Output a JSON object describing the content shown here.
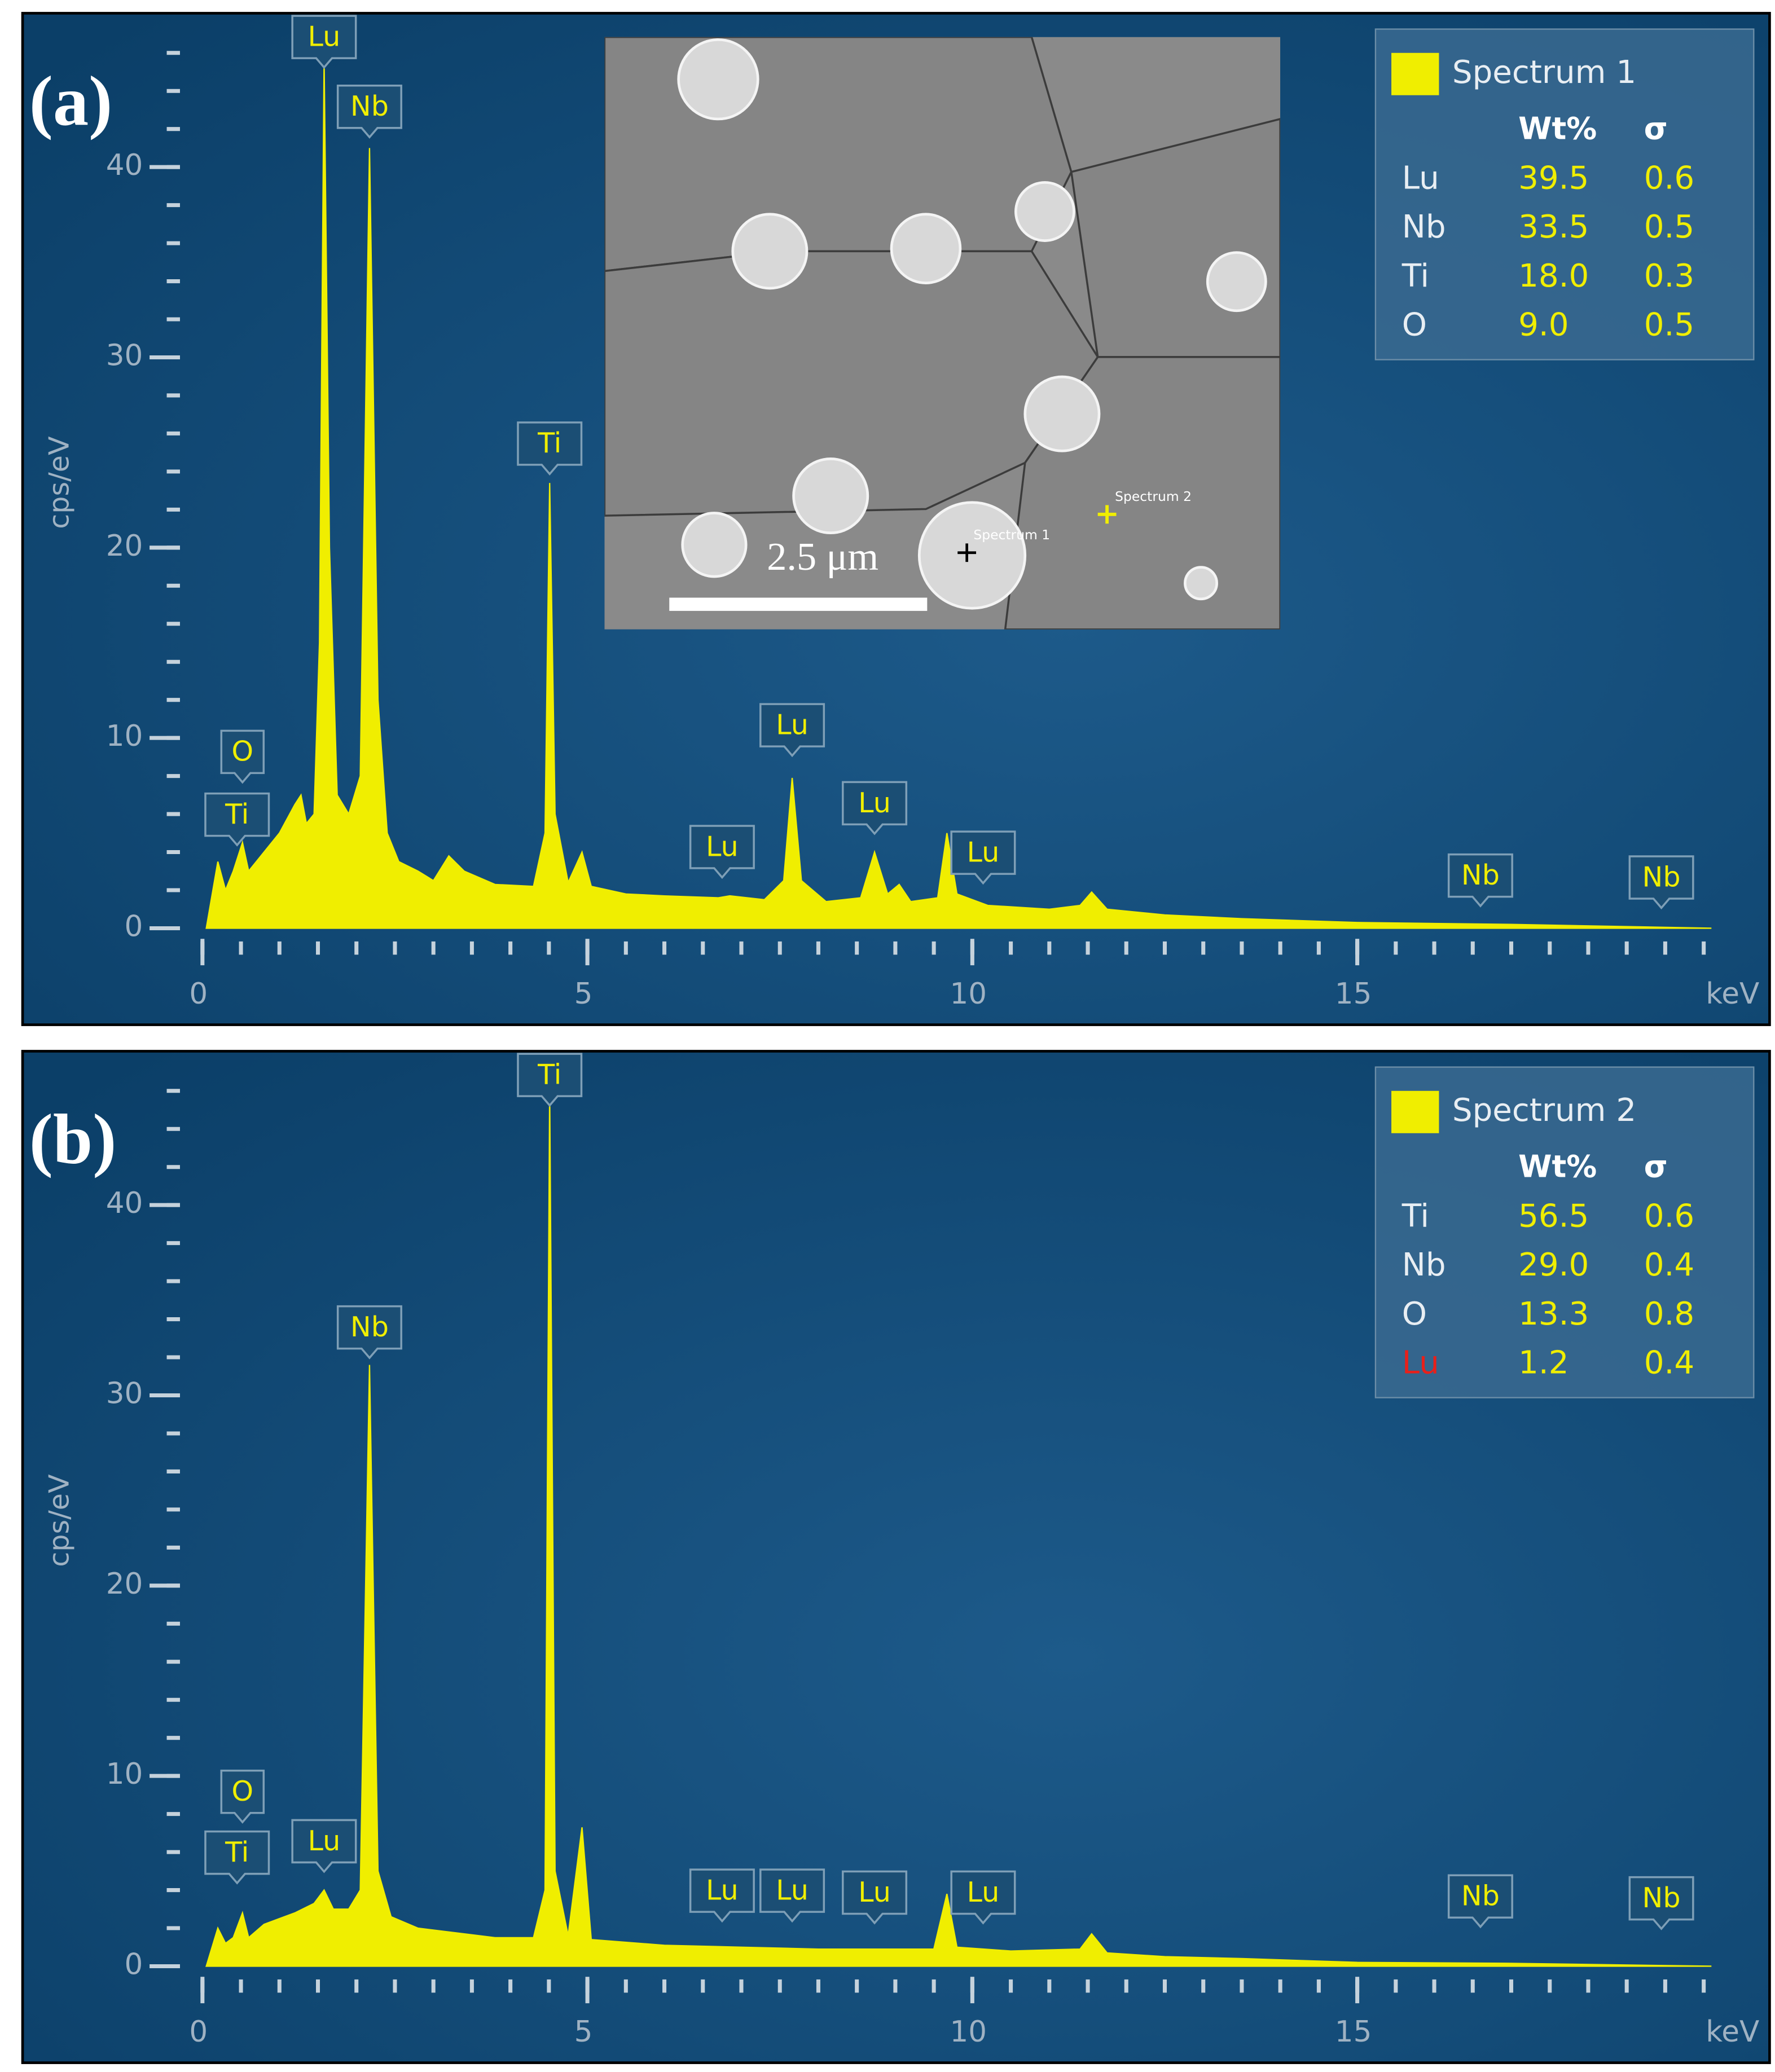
{
  "chart_data": [
    {
      "type": "area",
      "panel_label": "(a)",
      "y_label": "cps/eV",
      "x_label": "keV",
      "xlim": [
        0,
        19.6
      ],
      "ylim": [
        0,
        46
      ],
      "xticks": [
        0,
        5,
        10,
        15
      ],
      "yticks": [
        0,
        10,
        20,
        30,
        40
      ],
      "xminor": 0.5,
      "yminor": 2,
      "x": [
        0.05,
        0.2,
        0.3,
        0.4,
        0.52,
        0.6,
        0.8,
        1.0,
        1.2,
        1.28,
        1.35,
        1.45,
        1.52,
        1.58,
        1.65,
        1.75,
        1.9,
        2.05,
        2.17,
        2.28,
        2.4,
        2.55,
        2.8,
        3.0,
        3.2,
        3.4,
        3.8,
        4.3,
        4.45,
        4.51,
        4.58,
        4.75,
        4.93,
        5.05,
        5.5,
        6.0,
        6.7,
        6.85,
        7.3,
        7.55,
        7.66,
        7.78,
        8.1,
        8.55,
        8.73,
        8.9,
        9.05,
        9.2,
        9.55,
        9.67,
        9.8,
        10.2,
        11.0,
        11.4,
        11.55,
        11.75,
        12.5,
        13.5,
        15,
        17,
        19.6
      ],
      "series": [
        {
          "name": "Spectrum 1",
          "color": "#f0ee00",
          "values": [
            0,
            3.5,
            2,
            3,
            4.5,
            3,
            4,
            5,
            6.5,
            7,
            5.5,
            6,
            15,
            45.6,
            20,
            7,
            6,
            8,
            41,
            12,
            5,
            3.5,
            3,
            2.5,
            3.8,
            3,
            2.3,
            2.2,
            5,
            23.4,
            6,
            2.4,
            4,
            2.2,
            1.8,
            1.7,
            1.6,
            1.7,
            1.5,
            2.5,
            7.9,
            2.5,
            1.4,
            1.6,
            4,
            1.8,
            2.3,
            1.4,
            1.6,
            5,
            1.8,
            1.2,
            1,
            1.2,
            1.9,
            1,
            0.7,
            0.5,
            0.3,
            0.2,
            0
          ]
        }
      ],
      "peak_labels": [
        {
          "text": "Ti",
          "x": 0.45,
          "y": 4.3
        },
        {
          "text": "O",
          "x": 0.52,
          "y": 7.6
        },
        {
          "text": "Lu",
          "x": 1.58,
          "y": 45.6
        },
        {
          "text": "Nb",
          "x": 2.17,
          "y": 41.5
        },
        {
          "text": "Ti",
          "x": 4.51,
          "y": 23.8
        },
        {
          "text": "Lu",
          "x": 6.75,
          "y": 2.6
        },
        {
          "text": "Lu",
          "x": 7.66,
          "y": 9
        },
        {
          "text": "Lu",
          "x": 8.73,
          "y": 4.9
        },
        {
          "text": "Lu",
          "x": 10.14,
          "y": 2.3
        },
        {
          "text": "Nb",
          "x": 16.6,
          "y": 1.1
        },
        {
          "text": "Nb",
          "x": 18.95,
          "y": 1
        }
      ],
      "legend_table": {
        "columns": [
          "Wt%",
          "σ"
        ],
        "rows": [
          {
            "element": "Lu",
            "wt": "39.5",
            "sigma": "0.6"
          },
          {
            "element": "Nb",
            "wt": "33.5",
            "sigma": "0.5"
          },
          {
            "element": "Ti",
            "wt": "18.0",
            "sigma": "0.3"
          },
          {
            "element": "O",
            "wt": "9.0",
            "sigma": "0.5"
          }
        ]
      },
      "inset": {
        "scale_bar": "2.5 μm",
        "markers": [
          "Spectrum 1",
          "Spectrum 2"
        ]
      }
    },
    {
      "type": "area",
      "panel_label": "(b)",
      "y_label": "cps/eV",
      "x_label": "keV",
      "xlim": [
        0,
        19.6
      ],
      "ylim": [
        0,
        46
      ],
      "xticks": [
        0,
        5,
        10,
        15
      ],
      "yticks": [
        0,
        10,
        20,
        30,
        40
      ],
      "xminor": 0.5,
      "yminor": 2,
      "x": [
        0.05,
        0.2,
        0.3,
        0.4,
        0.52,
        0.6,
        0.8,
        1.0,
        1.2,
        1.45,
        1.58,
        1.7,
        1.9,
        2.05,
        2.17,
        2.28,
        2.45,
        2.8,
        3.2,
        3.8,
        4.3,
        4.45,
        4.51,
        4.58,
        4.75,
        4.93,
        5.05,
        6,
        7,
        8,
        9.5,
        9.67,
        9.8,
        10.5,
        11.4,
        11.55,
        11.75,
        12.5,
        13.5,
        15,
        17,
        19.6
      ],
      "series": [
        {
          "name": "Spectrum 2",
          "color": "#f0ee00",
          "values": [
            0,
            2,
            1.2,
            1.5,
            2.8,
            1.5,
            2.2,
            2.5,
            2.8,
            3.3,
            4,
            3,
            3,
            4,
            31.6,
            5,
            2.6,
            2,
            1.8,
            1.5,
            1.5,
            4,
            46,
            5,
            1.6,
            7.3,
            1.4,
            1.1,
            1,
            0.9,
            0.9,
            3.8,
            1,
            0.8,
            0.9,
            1.7,
            0.7,
            0.5,
            0.4,
            0.2,
            0.15,
            0
          ]
        }
      ],
      "peak_labels": [
        {
          "text": "Ti",
          "x": 0.45,
          "y": 4.3
        },
        {
          "text": "O",
          "x": 0.52,
          "y": 7.5
        },
        {
          "text": "Lu",
          "x": 1.58,
          "y": 4.9
        },
        {
          "text": "Nb",
          "x": 2.17,
          "y": 31.9
        },
        {
          "text": "Ti",
          "x": 4.51,
          "y": 45.9
        },
        {
          "text": "Lu",
          "x": 6.75,
          "y": 2.3
        },
        {
          "text": "Lu",
          "x": 7.66,
          "y": 2.3
        },
        {
          "text": "Lu",
          "x": 8.73,
          "y": 2.2
        },
        {
          "text": "Lu",
          "x": 10.14,
          "y": 2.2
        },
        {
          "text": "Nb",
          "x": 16.6,
          "y": 2
        },
        {
          "text": "Nb",
          "x": 18.95,
          "y": 1.9
        }
      ],
      "legend_table": {
        "columns": [
          "Wt%",
          "σ"
        ],
        "rows": [
          {
            "element": "Ti",
            "wt": "56.5",
            "sigma": "0.6"
          },
          {
            "element": "Nb",
            "wt": "29.0",
            "sigma": "0.4"
          },
          {
            "element": "O",
            "wt": "13.3",
            "sigma": "0.8"
          },
          {
            "element": "Lu",
            "wt": "1.2",
            "sigma": "0.4",
            "color": "#e8201a"
          }
        ]
      }
    }
  ]
}
